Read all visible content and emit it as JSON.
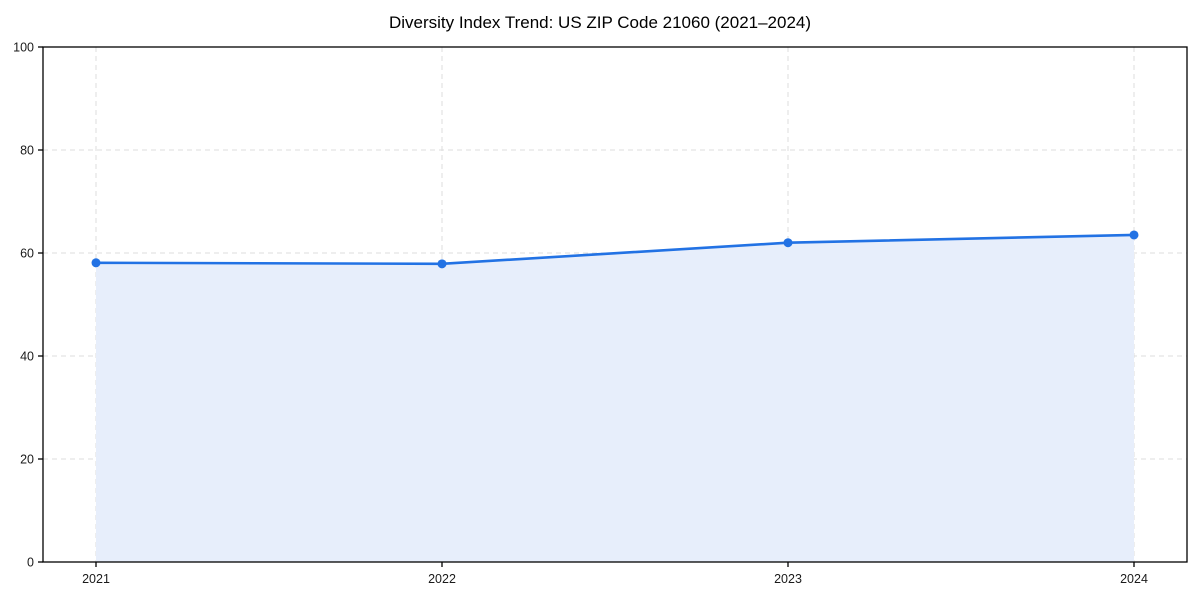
{
  "chart_data": {
    "type": "line",
    "title": "Diversity Index Trend: US ZIP Code 21060 (2021–2024)",
    "x": [
      "2021",
      "2022",
      "2023",
      "2024"
    ],
    "series": [
      {
        "name": "Diversity Index",
        "values": [
          58.1,
          57.9,
          62.0,
          63.5
        ]
      }
    ],
    "xlabel": "",
    "ylabel": "",
    "ylim": [
      0,
      100
    ],
    "yticks": [
      0,
      20,
      40,
      60,
      80,
      100
    ],
    "grid": "dashed-both-axes",
    "legend_position": "none",
    "area_fill": true,
    "marker": "circle",
    "colors": {
      "line": "#2272e4",
      "marker": "#2272e4",
      "fill": "#e7eefb",
      "grid": "#dcdcdc",
      "axis": "#000000",
      "tick_label": "#1a1a1a",
      "background": "#ffffff"
    }
  }
}
